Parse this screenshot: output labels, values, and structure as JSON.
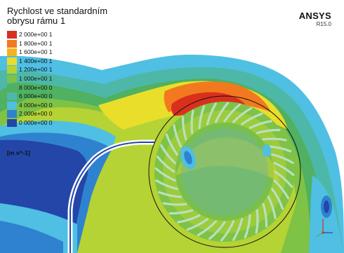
{
  "title_line1": "Rychlost ve standardním",
  "title_line2": "obrysu rámu 1",
  "brand": {
    "name": "ANSYS",
    "version": "R15.0"
  },
  "legend": {
    "levels": [
      {
        "label": "2 000e+00 1",
        "color": "#d9301e"
      },
      {
        "label": "1 800e+00 1",
        "color": "#f2791f"
      },
      {
        "label": "1 600e+00 1",
        "color": "#f5b321"
      },
      {
        "label": "1 400e+00 1",
        "color": "#e9de2a"
      },
      {
        "label": "1 200e+00 1",
        "color": "#b5d334"
      },
      {
        "label": "1 000e+00 1",
        "color": "#7ec246"
      },
      {
        "label": "8 000e+00 0",
        "color": "#4fb161"
      },
      {
        "label": "6 000e+00 0",
        "color": "#4db8a7"
      },
      {
        "label": "4 000e+00 0",
        "color": "#4fbfe3"
      },
      {
        "label": "2 000e+00 0",
        "color": "#2f82cf"
      },
      {
        "label": "0 000e+00 0",
        "color": "#2346a8"
      }
    ],
    "unit": "[m s^-1]"
  },
  "colors": {
    "background": "#ffffff",
    "deep_blue": "#2346a8",
    "blue": "#2f82cf",
    "cyan": "#4fbfe3",
    "teal": "#4db8a7",
    "green": "#4fb161",
    "lime": "#7ec246",
    "yellow_green": "#b5d334",
    "yellow": "#e9de2a",
    "orange": "#f2791f",
    "red": "#d9301e",
    "blade": "#b9e0c0"
  },
  "icons": [
    "axis-triad-icon"
  ]
}
